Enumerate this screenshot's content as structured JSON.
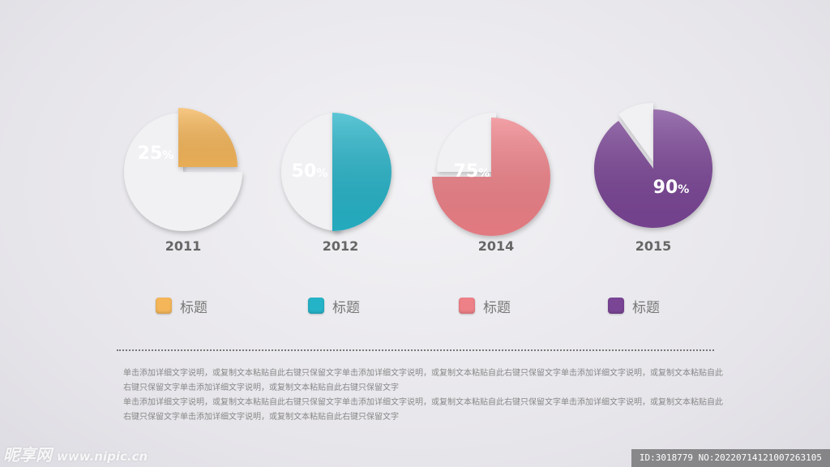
{
  "chart_data": [
    {
      "type": "pie",
      "year": "2011",
      "value": 25,
      "value_label": "25",
      "unit": "%",
      "color": "#f5b65a"
    },
    {
      "type": "pie",
      "year": "2012",
      "value": 50,
      "value_label": "50",
      "unit": "%",
      "color": "#25b3c8"
    },
    {
      "type": "pie",
      "year": "2014",
      "value": 75,
      "value_label": "75",
      "unit": "%",
      "color": "#ee8188"
    },
    {
      "type": "pie",
      "year": "2015",
      "value": 90,
      "value_label": "90",
      "unit": "%",
      "color": "#7a4595"
    }
  ],
  "legend": [
    {
      "label": "标题",
      "color": "#f5b65a"
    },
    {
      "label": "标题",
      "color": "#25b3c8"
    },
    {
      "label": "标题",
      "color": "#ee8188"
    },
    {
      "label": "标题",
      "color": "#7a4595"
    }
  ],
  "description": [
    "单击添加详细文字说明，或复制文本粘贴自此右键只保留文字单击添加详细文字说明，或复制文本粘贴自此右键只保留文字单击添加详细文字说明，或复制文本粘贴自此右键只保留文字单击添加详细文字说明，或复制文本粘贴自此右键只保留文字",
    "单击添加详细文字说明，或复制文本粘贴自此右键只保留文字单击添加详细文字说明，或复制文本粘贴自此右键只保留文字单击添加详细文字说明，或复制文本粘贴自此右键只保留文字单击添加详细文字说明，或复制文本粘贴自此右键只保留文字"
  ],
  "watermark": {
    "left": "昵享网",
    "site": "www.nipic.cn",
    "right": "ID:3018779 NO:20220714121007263105"
  }
}
